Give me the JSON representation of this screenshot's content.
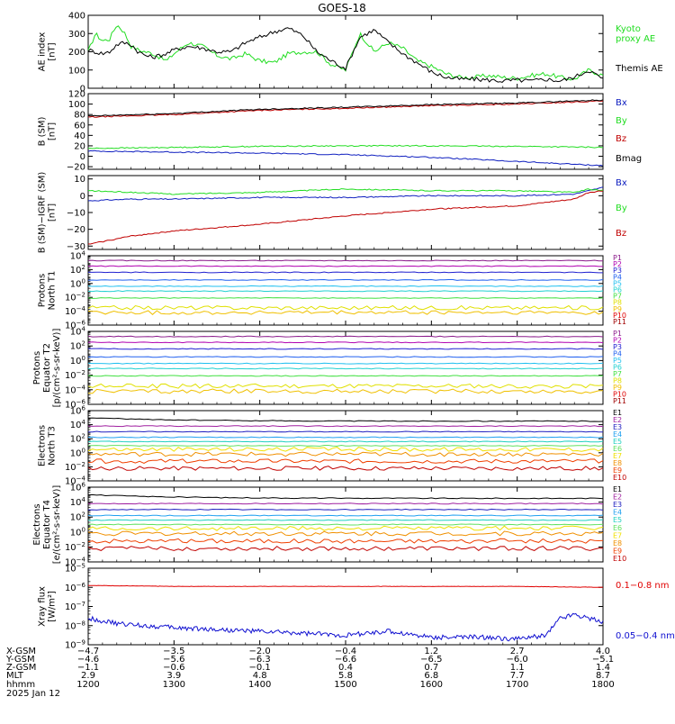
{
  "title": "GOES-18",
  "date": "2025 Jan 12",
  "colors": {
    "frame": "#000000",
    "black": "#000000",
    "green": "#22dd22",
    "blue": "#1020c0",
    "red": "#c00000",
    "xray_red": "#e00000",
    "xray_blue": "#1010d0",
    "p_channels": [
      "#8b1a8b",
      "#b000b0",
      "#2020d0",
      "#2060f0",
      "#20c0f0",
      "#20d0d0",
      "#40e040",
      "#e0e000",
      "#f0c000",
      "#e00000",
      "#a00000"
    ],
    "e_channels": [
      "#000000",
      "#a020a0",
      "#2020c0",
      "#20a0f0",
      "#20d0c0",
      "#60e060",
      "#f0e000",
      "#f09000",
      "#f04000",
      "#c00000",
      "#900000"
    ]
  },
  "chart_data": [
    {
      "type": "line",
      "panel": "ae",
      "ylabel": [
        "AE index",
        "[nT]"
      ],
      "ylim": [
        0,
        400
      ],
      "yticks": [
        "0",
        "100",
        "200",
        "300",
        "400"
      ],
      "series": [
        {
          "name": "Kyoto proxy AE",
          "name_lines": [
            "Kyoto",
            "proxy AE"
          ],
          "color_key": "green",
          "x": [
            0,
            5,
            10,
            15,
            20,
            25,
            30,
            35,
            40,
            45,
            50,
            55,
            60,
            70,
            80,
            90,
            100,
            110,
            120,
            130,
            140,
            150,
            160,
            170,
            180,
            190,
            200,
            210,
            220,
            230,
            240,
            250,
            260,
            270,
            280,
            290,
            300,
            310,
            320,
            330,
            340,
            350,
            360
          ],
          "y": [
            200,
            300,
            260,
            270,
            350,
            310,
            230,
            210,
            200,
            190,
            170,
            150,
            190,
            250,
            230,
            180,
            160,
            190,
            150,
            140,
            190,
            200,
            200,
            130,
            100,
            300,
            200,
            250,
            220,
            150,
            120,
            80,
            60,
            60,
            70,
            60,
            55,
            70,
            80,
            60,
            50,
            100,
            70
          ]
        },
        {
          "name": "Themis AE",
          "name_lines": [
            "Themis AE"
          ],
          "color_key": "black",
          "x": [
            0,
            5,
            10,
            15,
            20,
            25,
            30,
            35,
            40,
            45,
            50,
            55,
            60,
            70,
            80,
            90,
            100,
            110,
            120,
            130,
            140,
            150,
            160,
            170,
            180,
            190,
            200,
            210,
            220,
            230,
            240,
            250,
            260,
            270,
            280,
            290,
            300,
            310,
            320,
            330,
            340,
            350,
            360
          ],
          "y": [
            210,
            200,
            190,
            200,
            240,
            250,
            240,
            200,
            180,
            170,
            180,
            190,
            210,
            230,
            220,
            200,
            200,
            250,
            280,
            310,
            330,
            290,
            200,
            150,
            110,
            280,
            320,
            250,
            190,
            140,
            90,
            60,
            50,
            50,
            45,
            40,
            45,
            40,
            50,
            40,
            60,
            100,
            50
          ]
        }
      ]
    },
    {
      "type": "line",
      "panel": "bsm",
      "ylabel": [
        "B (SM)",
        "[nT]"
      ],
      "ylim": [
        -25,
        120
      ],
      "yticks": [
        "−20",
        "0",
        "20",
        "40",
        "60",
        "80",
        "100",
        "120"
      ],
      "series": [
        {
          "name": "Bx",
          "color_key": "blue",
          "x": [
            0,
            60,
            120,
            180,
            240,
            300,
            360
          ],
          "y": [
            10,
            8,
            6,
            3,
            -2,
            -10,
            -18
          ]
        },
        {
          "name": "By",
          "color_key": "green",
          "x": [
            0,
            60,
            120,
            180,
            240,
            300,
            360
          ],
          "y": [
            15,
            17,
            19,
            20,
            20,
            19,
            17
          ]
        },
        {
          "name": "Bz",
          "color_key": "red",
          "x": [
            0,
            60,
            120,
            180,
            240,
            300,
            360
          ],
          "y": [
            75,
            80,
            88,
            92,
            97,
            100,
            106
          ]
        },
        {
          "name": "Bmag",
          "color_key": "black",
          "x": [
            0,
            60,
            120,
            180,
            240,
            300,
            360
          ],
          "y": [
            77,
            82,
            90,
            94,
            99,
            102,
            108
          ]
        }
      ]
    },
    {
      "type": "line",
      "panel": "bigrf",
      "ylabel": [
        "B (SM)−IGRF (SM)",
        "[nT]"
      ],
      "ylim": [
        -32,
        12
      ],
      "yticks": [
        "−30",
        "−20",
        "−10",
        "0",
        "10"
      ],
      "series": [
        {
          "name": "Bx",
          "color_key": "blue",
          "x": [
            0,
            30,
            60,
            120,
            180,
            240,
            300,
            340,
            350,
            360
          ],
          "y": [
            -3,
            -2,
            -2,
            -1,
            -1,
            0,
            0,
            1,
            3,
            5
          ]
        },
        {
          "name": "By",
          "color_key": "green",
          "x": [
            0,
            30,
            60,
            120,
            180,
            240,
            300,
            340,
            350,
            360
          ],
          "y": [
            3,
            2,
            1,
            2,
            4,
            3,
            3,
            2,
            4,
            3
          ]
        },
        {
          "name": "Bz",
          "color_key": "red",
          "x": [
            0,
            30,
            60,
            120,
            180,
            240,
            300,
            340,
            350,
            360
          ],
          "y": [
            -29,
            -24,
            -21,
            -17,
            -12,
            -8,
            -6,
            -2,
            2,
            3
          ]
        }
      ]
    },
    {
      "type": "line",
      "panel": "protons_t1",
      "log": true,
      "ylabel": [
        "Protons",
        "North T1"
      ],
      "ylim_exp": [
        -6,
        4
      ],
      "ytick_exps": [
        -6,
        -4,
        -2,
        0,
        2,
        4
      ],
      "channels": [
        "P1",
        "P2",
        "P3",
        "P4",
        "P5",
        "P6",
        "P7",
        "P8",
        "P9",
        "P10",
        "P11"
      ],
      "levels_exp": [
        3.3,
        2.5,
        1.6,
        0.5,
        -0.4,
        -1.1,
        -2.1,
        -3.5,
        -4.2,
        -6.5,
        -7
      ]
    },
    {
      "type": "line",
      "panel": "protons_t2",
      "log": true,
      "ylabel": [
        "Protons",
        "Equator T2",
        "[p/(cm²-s-sr-keV)]"
      ],
      "ylim_exp": [
        -6,
        4
      ],
      "ytick_exps": [
        -6,
        -4,
        -2,
        0,
        2,
        4
      ],
      "channels": [
        "P1",
        "P2",
        "P3",
        "P4",
        "P5",
        "P6",
        "P7",
        "P8",
        "P9",
        "P10",
        "P11"
      ],
      "levels_exp": [
        3.3,
        2.5,
        1.6,
        0.5,
        -0.4,
        -1.1,
        -2.1,
        -3.5,
        -4.2,
        -6.5,
        -7
      ]
    },
    {
      "type": "line",
      "panel": "electrons_t3",
      "log": true,
      "ylabel": [
        "Electrons",
        "North T3"
      ],
      "ylim_exp": [
        -4,
        6
      ],
      "ytick_exps": [
        -4,
        -2,
        0,
        2,
        4,
        6
      ],
      "channels": [
        "E1",
        "E2",
        "E3",
        "E4",
        "E5",
        "E6",
        "E7",
        "E8",
        "E9",
        "E10"
      ],
      "levels_exp": [
        4.5,
        3.8,
        3.0,
        2.2,
        1.6,
        1.0,
        0.5,
        -0.2,
        -1.2,
        -2.2
      ]
    },
    {
      "type": "line",
      "panel": "electrons_t4",
      "log": true,
      "ylabel": [
        "Electrons",
        "Equator T4",
        "[e/(cm²-s-sr-keV)]"
      ],
      "ylim_exp": [
        -4,
        6
      ],
      "ytick_exps": [
        -4,
        -2,
        0,
        2,
        4,
        6
      ],
      "channels": [
        "E1",
        "E2",
        "E3",
        "E4",
        "E5",
        "E6",
        "E7",
        "E8",
        "E9",
        "E10"
      ],
      "levels_exp": [
        4.5,
        3.8,
        3.0,
        2.2,
        1.6,
        1.0,
        0.5,
        -0.2,
        -1.2,
        -2.2
      ]
    },
    {
      "type": "line",
      "panel": "xray",
      "log": true,
      "ylabel": [
        "Xray flux",
        "[W/m²]"
      ],
      "ylim_exp": [
        -9,
        -5
      ],
      "ytick_exps": [
        -9,
        -8,
        -7,
        -6,
        -5
      ],
      "series": [
        {
          "name": "0.1−0.8 nm",
          "color_key": "xray_red",
          "x": [
            0,
            60,
            120,
            180,
            240,
            300,
            360
          ],
          "y_exp": [
            -5.9,
            -5.95,
            -5.95,
            -5.95,
            -5.95,
            -5.95,
            -6.0
          ]
        },
        {
          "name": "0.05−0.4 nm",
          "color_key": "xray_blue",
          "x": [
            0,
            20,
            40,
            60,
            90,
            120,
            150,
            180,
            210,
            240,
            270,
            300,
            320,
            330,
            340,
            350,
            360
          ],
          "y_exp": [
            -7.6,
            -7.9,
            -8.0,
            -8.1,
            -8.2,
            -8.3,
            -8.4,
            -8.5,
            -8.3,
            -8.6,
            -8.6,
            -8.7,
            -8.5,
            -7.6,
            -7.4,
            -7.6,
            -7.8
          ]
        }
      ]
    }
  ],
  "xaxis": {
    "ticks": [
      {
        "x_gsm": "−4.7",
        "y_gsm": "−4.6",
        "z_gsm": "−1.1",
        "mlt": "2.9",
        "time": "1200"
      },
      {
        "x_gsm": "−3.5",
        "y_gsm": "−5.6",
        "z_gsm": "−0.6",
        "mlt": "3.9",
        "time": "1300"
      },
      {
        "x_gsm": "−2.0",
        "y_gsm": "−6.3",
        "z_gsm": "−0.1",
        "mlt": "4.8",
        "time": "1400"
      },
      {
        "x_gsm": "−0.4",
        "y_gsm": "−6.6",
        "z_gsm": "0.4",
        "mlt": "5.8",
        "time": "1500"
      },
      {
        "x_gsm": "1.2",
        "y_gsm": "−6.5",
        "z_gsm": "0.7",
        "mlt": "6.8",
        "time": "1600"
      },
      {
        "x_gsm": "2.7",
        "y_gsm": "−6.0",
        "z_gsm": "1.1",
        "mlt": "7.7",
        "time": "1700"
      },
      {
        "x_gsm": "4.0",
        "y_gsm": "−5.1",
        "z_gsm": "1.4",
        "mlt": "8.7",
        "time": "1800"
      }
    ],
    "row_labels": [
      "X-GSM",
      "Y-GSM",
      "Z-GSM",
      "MLT",
      "hhmm"
    ]
  }
}
